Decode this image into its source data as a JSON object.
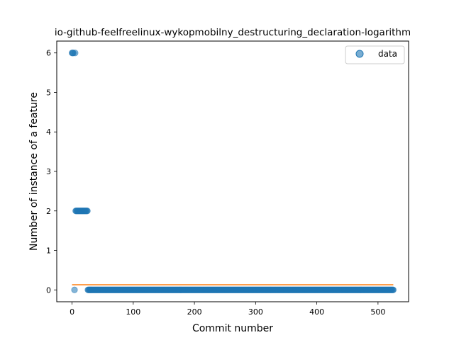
{
  "chart_data": {
    "type": "scatter",
    "title": "io-github-feelfreelinux-wykopmobilny_destructuring_declaration-logarithm",
    "xlabel": "Commit number",
    "ylabel": "Number of instance of a feature",
    "xlim": [
      -25,
      550
    ],
    "ylim": [
      -0.3,
      6.3
    ],
    "xticks": [
      0,
      100,
      200,
      300,
      400,
      500
    ],
    "yticks": [
      0,
      1,
      2,
      3,
      4,
      5,
      6
    ],
    "grid": false,
    "legend": {
      "placement": "top-right",
      "entries": [
        "data"
      ]
    },
    "colors": {
      "data": "#1f77b4",
      "fit": "#ff7f0e"
    },
    "series": [
      {
        "name": "data",
        "kind": "scatter",
        "segments": [
          {
            "x_start": 0,
            "x_end": 2,
            "y": 6
          },
          {
            "x_start": 4,
            "x_end": 4,
            "y": 0
          },
          {
            "x_start": 5,
            "x_end": 5,
            "y": 6
          },
          {
            "x_start": 6,
            "x_end": 25,
            "y": 2
          },
          {
            "x_start": 26,
            "x_end": 525,
            "y": 0
          }
        ]
      },
      {
        "kind": "line",
        "x": [
          0,
          525
        ],
        "y": [
          0.13,
          0.13
        ]
      }
    ]
  }
}
